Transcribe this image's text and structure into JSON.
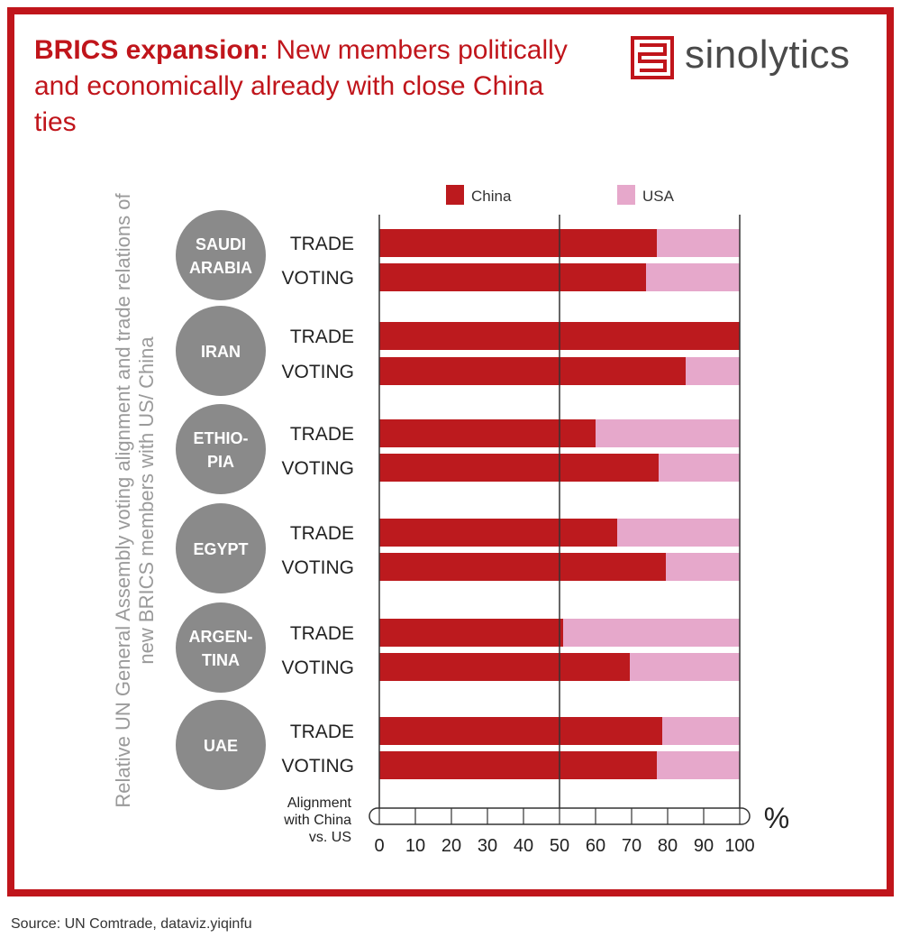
{
  "title": {
    "bold": "BRICS expansion:",
    "rest": "New members politically and economically already with close China ties"
  },
  "logo": {
    "text": "sinolytics"
  },
  "source": "Source: UN Comtrade, dataviz.yiqinfu",
  "colors": {
    "china": "#bc1a1e",
    "usa": "#e6a8cb",
    "frame": "#c0151b",
    "circle": "#8a8a8a"
  },
  "chart_data": {
    "type": "bar",
    "stacked": true,
    "orientation": "horizontal",
    "ylabel": "Relative UN General Assembly voting alignment and trade relations of new BRICS members with US/ China",
    "xlabel": "Alignment with China vs. US",
    "x_unit": "%",
    "xlim": [
      0,
      100
    ],
    "x_ticks": [
      0,
      10,
      20,
      30,
      40,
      50,
      60,
      70,
      80,
      90,
      100
    ],
    "legend": {
      "position": "top",
      "entries": [
        "China",
        "USA"
      ]
    },
    "groups": [
      {
        "country": "SAUDI ARABIA",
        "lines": [
          "SAUDI",
          "ARABIA"
        ],
        "bars": [
          {
            "label": "TRADE",
            "china": 77
          },
          {
            "label": "VOTING",
            "china": 74
          }
        ]
      },
      {
        "country": "IRAN",
        "lines": [
          "IRAN"
        ],
        "bars": [
          {
            "label": "TRADE",
            "china": 100
          },
          {
            "label": "VOTING",
            "china": 85
          }
        ]
      },
      {
        "country": "ETHIOPIA",
        "lines": [
          "ETHIO-",
          "PIA"
        ],
        "bars": [
          {
            "label": "TRADE",
            "china": 60
          },
          {
            "label": "VOTING",
            "china": 77.5
          }
        ]
      },
      {
        "country": "EGYPT",
        "lines": [
          "EGYPT"
        ],
        "bars": [
          {
            "label": "TRADE",
            "china": 66
          },
          {
            "label": "VOTING",
            "china": 79.5
          }
        ]
      },
      {
        "country": "ARGENTINA",
        "lines": [
          "ARGEN-",
          "TINA"
        ],
        "bars": [
          {
            "label": "TRADE",
            "china": 51
          },
          {
            "label": "VOTING",
            "china": 69.5
          }
        ]
      },
      {
        "country": "UAE",
        "lines": [
          "UAE"
        ],
        "bars": [
          {
            "label": "TRADE",
            "china": 78.5
          },
          {
            "label": "VOTING",
            "china": 77
          }
        ]
      }
    ]
  }
}
